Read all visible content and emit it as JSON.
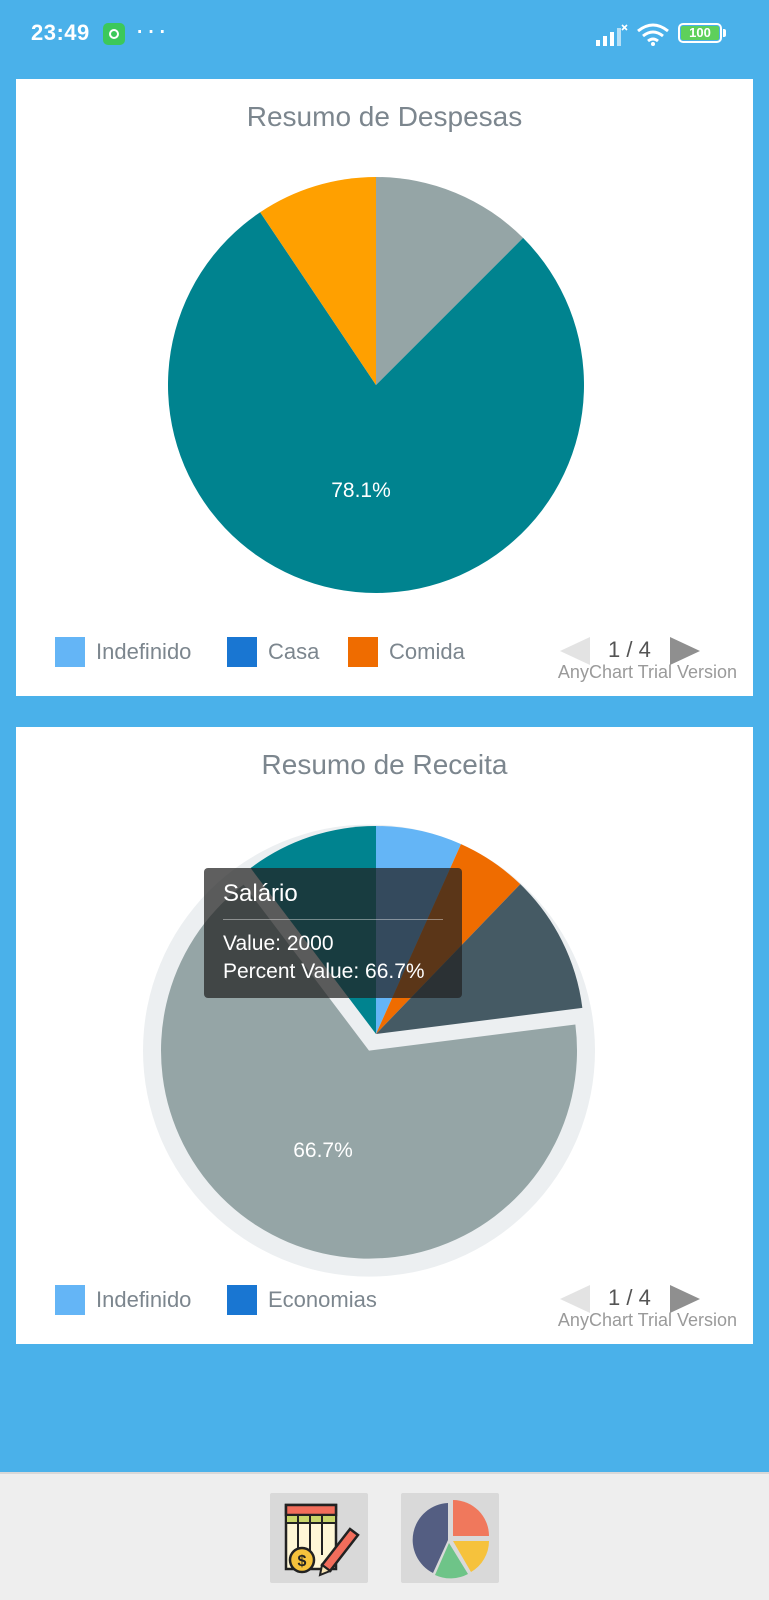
{
  "status_bar": {
    "time": "23:49",
    "battery": "100"
  },
  "charts": [
    {
      "title": "Resumo de Despesas",
      "legend": [
        {
          "label": "Indefinido",
          "color": "#64b5f6"
        },
        {
          "label": "Casa",
          "color": "#1976d2"
        },
        {
          "label": "Comida",
          "color": "#ef6c00"
        }
      ],
      "pager": "1 / 4",
      "credits": "AnyChart Trial Version",
      "center_label": "78.1%"
    },
    {
      "title": "Resumo de Receita",
      "legend": [
        {
          "label": "Indefinido",
          "color": "#64b5f6"
        },
        {
          "label": "Economias",
          "color": "#1976d2"
        }
      ],
      "pager": "1 / 4",
      "credits": "AnyChart Trial Version",
      "center_label": "66.7%",
      "tooltip": {
        "title": "Salário",
        "value_line": "Value: 2000",
        "percent_line": "Percent Value: 66.7%"
      }
    }
  ],
  "chart_data": [
    {
      "type": "pie",
      "title": "Resumo de Despesas",
      "series": [
        {
          "value": 12.5,
          "color": "#95a5a6"
        },
        {
          "value": 78.1,
          "color": "#00838f"
        },
        {
          "value": 9.4,
          "color": "#ffa000"
        }
      ],
      "legend_visible": [
        "Indefinido",
        "Casa",
        "Comida"
      ],
      "labels": [
        "78.1%"
      ]
    },
    {
      "type": "pie",
      "title": "Resumo de Receita",
      "series": [
        {
          "value": 6.7,
          "color": "#64b5f6"
        },
        {
          "value": 5.5,
          "color": "#ef6c00"
        },
        {
          "value": 10.8,
          "color": "#455a64"
        },
        {
          "name": "Salário",
          "value": 66.7,
          "color": "#95a5a6",
          "exploded": true
        },
        {
          "value": 10.3,
          "color": "#00838f"
        }
      ],
      "legend_visible": [
        "Indefinido",
        "Economias"
      ],
      "labels": [
        "66.7%"
      ]
    }
  ],
  "bottom_nav": [
    {
      "icon": "spreadsheet-money-icon"
    },
    {
      "icon": "pie-chart-icon"
    }
  ]
}
